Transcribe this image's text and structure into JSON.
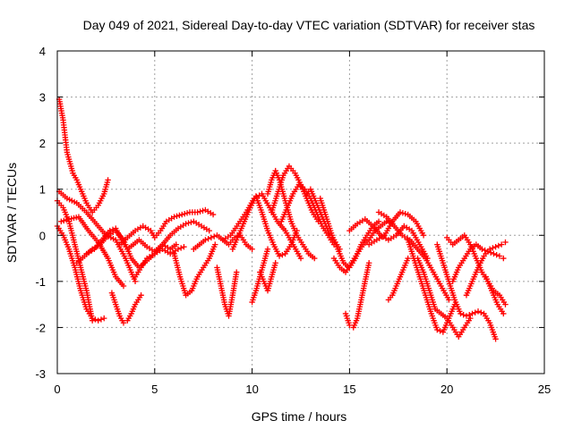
{
  "chart_data": {
    "type": "scatter",
    "title": "Day 049 of 2021, Sidereal Day-to-day VTEC variation (SDTVAR) for receiver stas",
    "xlabel": "GPS time / hours",
    "ylabel": "SDTVAR / TECUs",
    "xlim": [
      0,
      25
    ],
    "ylim": [
      -3,
      4
    ],
    "xticks": [
      0,
      5,
      10,
      15,
      20,
      25
    ],
    "yticks": [
      -3,
      -2,
      -1,
      0,
      1,
      2,
      3,
      4
    ],
    "grid": true,
    "marker": "+",
    "series_color": "#ff0000",
    "tracks": [
      {
        "x": [
          0.1,
          0.3,
          0.5,
          0.8,
          1.0,
          1.2,
          1.5,
          1.8,
          2.1,
          2.4,
          2.6
        ],
        "y": [
          2.95,
          2.5,
          1.8,
          1.35,
          1.2,
          1.0,
          0.7,
          0.5,
          0.65,
          0.9,
          1.2
        ]
      },
      {
        "x": [
          0.0,
          0.3,
          0.6,
          0.9,
          1.2,
          1.5,
          1.8,
          2.1,
          2.4
        ],
        "y": [
          0.2,
          0.0,
          -0.3,
          -0.7,
          -1.2,
          -1.6,
          -1.8,
          -1.85,
          -1.8
        ]
      },
      {
        "x": [
          0.0,
          0.3,
          0.6,
          0.9,
          1.2,
          1.5,
          1.8
        ],
        "y": [
          0.75,
          0.6,
          0.3,
          -0.2,
          -0.7,
          -1.2,
          -1.85
        ]
      },
      {
        "x": [
          0.1,
          0.5,
          1.0,
          1.5,
          2.0,
          2.5,
          3.0,
          3.5,
          4.0
        ],
        "y": [
          0.95,
          0.8,
          0.7,
          0.5,
          0.25,
          0.0,
          -0.1,
          -0.5,
          -1.0
        ]
      },
      {
        "x": [
          0.2,
          0.6,
          1.1,
          1.6,
          2.1,
          2.6,
          3.0,
          3.4
        ],
        "y": [
          0.3,
          0.35,
          0.4,
          0.1,
          -0.15,
          -0.5,
          -0.9,
          -1.1
        ]
      },
      {
        "x": [
          1.0,
          1.4,
          1.8,
          2.2,
          2.6,
          3.0,
          3.4,
          3.8,
          4.2,
          4.6,
          5.0,
          5.4,
          5.8,
          6.2,
          6.5
        ],
        "y": [
          -0.6,
          -0.45,
          -0.3,
          -0.2,
          0.0,
          0.1,
          -0.1,
          -0.5,
          -0.7,
          -0.55,
          -0.4,
          -0.3,
          -0.4,
          -0.3,
          -0.25
        ]
      },
      {
        "x": [
          1.5,
          1.9,
          2.3,
          2.7,
          3.0,
          3.3,
          3.6,
          3.9,
          4.2,
          4.6,
          5.0,
          5.4,
          5.8,
          6.1
        ],
        "y": [
          -0.4,
          -0.3,
          -0.1,
          0.1,
          0.15,
          -0.1,
          -0.3,
          -0.2,
          -0.1,
          -0.25,
          -0.35,
          -0.2,
          -0.3,
          -0.2
        ]
      },
      {
        "x": [
          2.8,
          3.0,
          3.2,
          3.4,
          3.6,
          3.8,
          4.0,
          4.3
        ],
        "y": [
          -1.25,
          -1.5,
          -1.75,
          -1.9,
          -1.85,
          -1.7,
          -1.5,
          -1.3
        ]
      },
      {
        "x": [
          3.2,
          3.6,
          4.0,
          4.4,
          4.8,
          5.0,
          5.3,
          5.6,
          6.0,
          6.4,
          6.8,
          7.2,
          7.6,
          8.0
        ],
        "y": [
          -0.2,
          -0.05,
          0.1,
          0.2,
          0.1,
          -0.05,
          0.1,
          0.3,
          0.4,
          0.45,
          0.5,
          0.5,
          0.55,
          0.45
        ]
      },
      {
        "x": [
          4.0,
          4.3,
          4.6,
          5.0,
          5.4,
          5.8,
          6.2,
          6.6,
          7.0,
          7.4,
          7.8
        ],
        "y": [
          -0.9,
          -0.7,
          -0.5,
          -0.4,
          -0.2,
          0.0,
          0.15,
          0.25,
          0.3,
          0.2,
          0.1
        ]
      },
      {
        "x": [
          6.0,
          6.3,
          6.6,
          6.9,
          7.2,
          7.5,
          7.8,
          8.1
        ],
        "y": [
          -0.4,
          -0.9,
          -1.3,
          -1.2,
          -0.9,
          -0.7,
          -0.5,
          -0.2
        ]
      },
      {
        "x": [
          7.0,
          7.3,
          7.6,
          7.9,
          8.2,
          8.5,
          8.8,
          9.1,
          9.4,
          9.7,
          10.0
        ],
        "y": [
          -0.3,
          -0.2,
          -0.1,
          -0.05,
          0.0,
          -0.1,
          -0.2,
          -0.05,
          0.0,
          -0.2,
          -0.3
        ]
      },
      {
        "x": [
          8.2,
          8.4,
          8.6,
          8.8,
          9.0,
          9.2
        ],
        "y": [
          -0.7,
          -1.1,
          -1.5,
          -1.75,
          -1.3,
          -0.8
        ]
      },
      {
        "x": [
          8.5,
          8.9,
          9.3,
          9.7,
          10.1,
          10.5,
          10.9,
          11.3,
          11.7,
          12.1,
          12.5
        ],
        "y": [
          -0.1,
          0.0,
          0.25,
          0.5,
          0.8,
          0.9,
          0.6,
          0.3,
          0.1,
          -0.2,
          -0.5
        ]
      },
      {
        "x": [
          9.0,
          9.3,
          9.6,
          9.9,
          10.2,
          10.5,
          10.8,
          11.1,
          11.4,
          11.7,
          12.0,
          12.3
        ],
        "y": [
          -0.3,
          0.0,
          0.3,
          0.6,
          0.85,
          0.5,
          0.1,
          -0.2,
          -0.45,
          -0.4,
          -0.2,
          0.1
        ]
      },
      {
        "x": [
          10.0,
          10.2,
          10.4,
          10.6,
          10.8
        ],
        "y": [
          -1.45,
          -1.2,
          -0.9,
          -0.6,
          -0.3
        ]
      },
      {
        "x": [
          10.4,
          10.6,
          10.8,
          11.0,
          11.2
        ],
        "y": [
          -0.8,
          -1.0,
          -1.2,
          -0.9,
          -0.6
        ]
      },
      {
        "x": [
          10.8,
          11.0,
          11.2,
          11.4,
          11.6,
          11.8,
          12.0,
          12.3,
          12.6,
          12.9,
          13.2
        ],
        "y": [
          0.9,
          1.2,
          1.4,
          1.2,
          0.9,
          0.6,
          0.3,
          0.0,
          -0.2,
          -0.4,
          -0.5
        ]
      },
      {
        "x": [
          11.0,
          11.3,
          11.6,
          11.9,
          12.2,
          12.5,
          12.8,
          13.1,
          13.4
        ],
        "y": [
          0.5,
          0.9,
          1.3,
          1.5,
          1.35,
          1.1,
          0.8,
          0.5,
          0.3
        ]
      },
      {
        "x": [
          11.5,
          11.8,
          12.1,
          12.4,
          12.7,
          13.0,
          13.3,
          13.6,
          13.9,
          14.2
        ],
        "y": [
          0.3,
          0.6,
          0.9,
          1.1,
          1.0,
          0.8,
          0.5,
          0.2,
          0.0,
          -0.2
        ]
      },
      {
        "x": [
          12.8,
          13.0,
          13.2,
          13.4,
          13.6,
          13.8,
          14.0,
          14.2,
          14.5
        ],
        "y": [
          0.9,
          1.0,
          0.8,
          0.6,
          0.4,
          0.2,
          0.0,
          -0.1,
          -0.3
        ]
      },
      {
        "x": [
          13.5,
          13.8,
          14.1,
          14.4,
          14.7,
          15.0,
          15.3,
          15.6,
          15.9,
          16.2,
          16.5
        ],
        "y": [
          0.8,
          0.4,
          0.0,
          -0.3,
          -0.6,
          -0.7,
          -0.5,
          -0.2,
          0.0,
          0.2,
          0.3
        ]
      },
      {
        "x": [
          14.2,
          14.5,
          14.8,
          15.1,
          15.4,
          15.7,
          16.0,
          16.3,
          16.6,
          16.9,
          17.2
        ],
        "y": [
          -0.5,
          -0.7,
          -0.8,
          -0.6,
          -0.4,
          -0.2,
          -0.1,
          0.1,
          0.2,
          0.3,
          0.25
        ]
      },
      {
        "x": [
          14.8,
          15.0,
          15.2,
          15.4,
          15.6,
          15.8,
          16.0
        ],
        "y": [
          -1.7,
          -1.95,
          -2.0,
          -1.8,
          -1.4,
          -1.0,
          -0.6
        ]
      },
      {
        "x": [
          15.0,
          15.4,
          15.8,
          16.2,
          16.6,
          17.0,
          17.4,
          17.8,
          18.2,
          18.6,
          19.0
        ],
        "y": [
          0.1,
          0.25,
          0.35,
          0.2,
          0.0,
          -0.1,
          0.0,
          0.2,
          0.1,
          -0.2,
          -0.5
        ]
      },
      {
        "x": [
          16.0,
          16.4,
          16.8,
          17.2,
          17.6,
          18.0,
          18.4,
          18.8
        ],
        "y": [
          -0.2,
          -0.1,
          0.0,
          0.3,
          0.5,
          0.45,
          0.3,
          0.0
        ]
      },
      {
        "x": [
          16.5,
          16.9,
          17.3,
          17.7,
          18.1,
          18.5,
          18.9,
          19.3,
          19.7,
          20.1
        ],
        "y": [
          0.5,
          0.4,
          0.2,
          0.0,
          -0.1,
          -0.3,
          -0.5,
          -0.8,
          -1.1,
          -1.4
        ]
      },
      {
        "x": [
          17.0,
          17.2,
          17.4,
          17.6,
          17.8,
          18.0
        ],
        "y": [
          -1.4,
          -1.3,
          -1.1,
          -0.9,
          -0.7,
          -0.5
        ]
      },
      {
        "x": [
          18.0,
          18.3,
          18.6,
          18.9,
          19.2,
          19.5,
          19.8,
          20.1,
          20.4
        ],
        "y": [
          -0.1,
          -0.5,
          -0.9,
          -1.3,
          -1.7,
          -2.05,
          -2.1,
          -1.8,
          -1.5
        ]
      },
      {
        "x": [
          18.5,
          18.8,
          19.1,
          19.4,
          19.7,
          20.0,
          20.3,
          20.6,
          20.9,
          21.2
        ],
        "y": [
          -0.5,
          -0.8,
          -1.2,
          -1.6,
          -1.7,
          -1.8,
          -2.0,
          -2.2,
          -2.0,
          -1.8
        ]
      },
      {
        "x": [
          19.5,
          19.8,
          20.1,
          20.4,
          20.7,
          21.0,
          21.3,
          21.6,
          21.9,
          22.2,
          22.5
        ],
        "y": [
          -0.2,
          -0.6,
          -1.0,
          -1.4,
          -1.7,
          -1.75,
          -1.7,
          -1.65,
          -1.7,
          -1.9,
          -2.25
        ]
      },
      {
        "x": [
          20.0,
          20.3,
          20.6,
          20.9,
          21.2,
          21.5,
          21.8,
          22.1,
          22.4,
          22.7,
          23.0
        ],
        "y": [
          -0.05,
          -0.2,
          -0.1,
          0.0,
          -0.2,
          -0.5,
          -0.8,
          -1.0,
          -1.2,
          -1.3,
          -1.5
        ]
      },
      {
        "x": [
          20.3,
          20.6,
          20.9,
          21.2,
          21.5,
          21.8,
          22.1,
          22.4,
          22.7,
          22.9
        ],
        "y": [
          -1.0,
          -0.7,
          -0.5,
          -0.3,
          -0.2,
          -0.3,
          -0.35,
          -0.4,
          -0.45,
          -0.5
        ]
      },
      {
        "x": [
          21.0,
          21.3,
          21.6,
          21.9,
          22.2,
          22.5,
          22.8,
          23.0
        ],
        "y": [
          -1.3,
          -1.0,
          -0.7,
          -0.45,
          -0.3,
          -0.25,
          -0.2,
          -0.15
        ]
      },
      {
        "x": [
          22.0,
          22.3,
          22.6,
          22.9
        ],
        "y": [
          -0.9,
          -1.2,
          -1.5,
          -1.7
        ]
      }
    ]
  }
}
